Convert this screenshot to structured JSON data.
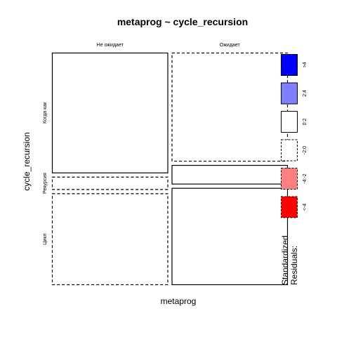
{
  "chart_data": {
    "type": "mosaic",
    "title": "metaprog ~ cycle_recursion",
    "xlabel": "metaprog",
    "ylabel": "cycle_recursion",
    "x_categories": [
      "Не ожидает",
      "Ожидает"
    ],
    "y_categories": [
      "Когда как",
      "Рекурсия",
      "Цикл"
    ],
    "cells": [
      {
        "x": "Не ожидает",
        "y": "Когда как",
        "proportion": 0.535,
        "residual_band": "0:2"
      },
      {
        "x": "Не ожидает",
        "y": "Рекурсия",
        "proportion": 0.058,
        "residual_band": "-2:0"
      },
      {
        "x": "Не ожидает",
        "y": "Цикл",
        "proportion": 0.407,
        "residual_band": "-2:0"
      },
      {
        "x": "Ожидает",
        "y": "Когда как",
        "proportion": 0.483,
        "residual_band": "-2:0"
      },
      {
        "x": "Ожидает",
        "y": "Рекурсия",
        "proportion": 0.086,
        "residual_band": "0:2"
      },
      {
        "x": "Ожидает",
        "y": "Цикл",
        "proportion": 0.431,
        "residual_band": "0:2"
      }
    ],
    "x_proportions": [
      0.5,
      0.5
    ],
    "legend": {
      "title_lines": [
        "Standardized",
        "Residuals:"
      ],
      "placement": "right",
      "entries": [
        {
          "label": ">4",
          "fill": "#0000ff",
          "dashed": false
        },
        {
          "label": "2:4",
          "fill": "#8080ff",
          "dashed": false
        },
        {
          "label": "0:2",
          "fill": "#ffffff",
          "dashed": false
        },
        {
          "label": "-2:0",
          "fill": "#ffffff",
          "dashed": true
        },
        {
          "label": "-4:-2",
          "fill": "#ff8080",
          "dashed": true
        },
        {
          "label": "<-4",
          "fill": "#ff0000",
          "dashed": true
        }
      ]
    }
  }
}
